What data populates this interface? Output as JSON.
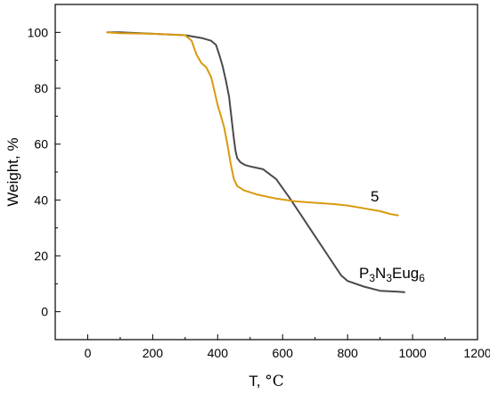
{
  "chart_data": {
    "type": "line",
    "xlabel": "T, ",
    "xlabel_unit": "°C",
    "ylabel": "Weight, %",
    "xlim": [
      -100,
      1200
    ],
    "ylim": [
      -10,
      110
    ],
    "x_ticks": [
      0,
      200,
      400,
      600,
      800,
      1000,
      1200
    ],
    "y_ticks": [
      0,
      20,
      40,
      60,
      80,
      100
    ],
    "grid": false,
    "series": [
      {
        "name": "P3N3Eug6",
        "label_parts": [
          "P",
          "3",
          "N",
          "3",
          "Eug",
          "6"
        ],
        "color": "#4a4a4a",
        "x": [
          60,
          100,
          200,
          300,
          350,
          380,
          395,
          405,
          415,
          425,
          435,
          440,
          445,
          450,
          455,
          460,
          470,
          485,
          500,
          540,
          580,
          620,
          660,
          700,
          740,
          780,
          800,
          850,
          900,
          950,
          975
        ],
        "y": [
          100,
          100,
          99.5,
          99,
          98,
          97,
          95.5,
          92,
          88,
          83,
          77,
          72,
          67,
          62,
          57.5,
          55,
          53.5,
          52.5,
          52,
          51,
          47.5,
          41,
          34,
          27,
          20,
          13,
          11,
          9,
          7.5,
          7.2,
          7
        ]
      },
      {
        "name": "5",
        "label_parts": [
          "5"
        ],
        "color": "#d99a0e",
        "x": [
          60,
          100,
          200,
          300,
          320,
          335,
          350,
          365,
          380,
          390,
          400,
          410,
          420,
          430,
          440,
          450,
          460,
          480,
          520,
          580,
          640,
          700,
          760,
          800,
          850,
          900,
          930,
          955
        ],
        "y": [
          100,
          99.7,
          99.5,
          99,
          97,
          92,
          89,
          87.5,
          84,
          79,
          74,
          70,
          66,
          60,
          53,
          47.5,
          45,
          43.5,
          42,
          40.5,
          39.5,
          39,
          38.5,
          38,
          37,
          36,
          35,
          34.5
        ]
      }
    ]
  }
}
